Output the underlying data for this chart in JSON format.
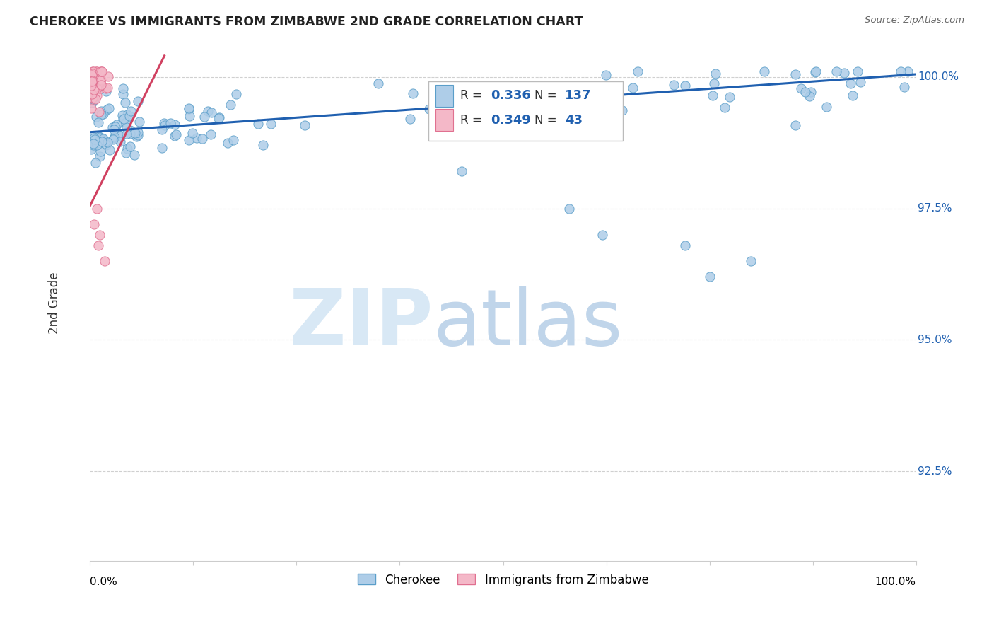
{
  "title": "CHEROKEE VS IMMIGRANTS FROM ZIMBABWE 2ND GRADE CORRELATION CHART",
  "source": "Source: ZipAtlas.com",
  "ylabel": "2nd Grade",
  "xlim": [
    0.0,
    1.0
  ],
  "ylim": [
    0.908,
    1.006
  ],
  "yticks": [
    0.925,
    0.95,
    0.975,
    1.0
  ],
  "ytick_labels": [
    "92.5%",
    "95.0%",
    "97.5%",
    "100.0%"
  ],
  "blue_R": 0.336,
  "blue_N": 137,
  "pink_R": 0.349,
  "pink_N": 43,
  "blue_color": "#aecde8",
  "pink_color": "#f4b8c8",
  "blue_edge_color": "#5a9ec9",
  "pink_edge_color": "#e07090",
  "blue_line_color": "#2060b0",
  "pink_line_color": "#d04060",
  "legend_blue_label": "Cherokee",
  "legend_pink_label": "Immigrants from Zimbabwe",
  "watermark_zip": "ZIP",
  "watermark_atlas": "atlas",
  "blue_line_x0": 0.0,
  "blue_line_y0": 0.9895,
  "blue_line_x1": 1.0,
  "blue_line_y1": 1.0005,
  "pink_line_x0": 0.0,
  "pink_line_y0": 0.9755,
  "pink_line_x1": 0.09,
  "pink_line_y1": 1.004
}
